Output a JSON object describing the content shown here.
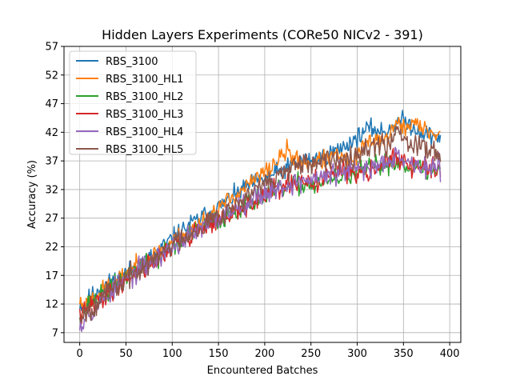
{
  "chart_data": {
    "type": "line",
    "title": "Hidden Layers Experiments (CORe50 NICv2 - 391)",
    "xlabel": "Encountered Batches",
    "ylabel": "Accuracy (%)",
    "xlim": [
      -17,
      412
    ],
    "ylim": [
      5.3,
      57
    ],
    "xticks": [
      0,
      50,
      100,
      150,
      200,
      250,
      300,
      350,
      400
    ],
    "yticks": [
      7,
      12,
      17,
      22,
      27,
      32,
      37,
      42,
      47,
      52,
      57
    ],
    "grid": true,
    "legend_position": "top-left",
    "series": [
      {
        "name": "RBS_3100",
        "color": "#1f77b4",
        "noise": 0.8,
        "seed": 11,
        "points": [
          [
            0,
            12
          ],
          [
            5,
            11.5
          ],
          [
            10,
            13
          ],
          [
            20,
            14.5
          ],
          [
            40,
            16.5
          ],
          [
            60,
            18.5
          ],
          [
            80,
            20.5
          ],
          [
            100,
            23.5
          ],
          [
            120,
            26
          ],
          [
            140,
            28
          ],
          [
            160,
            30
          ],
          [
            180,
            32.5
          ],
          [
            200,
            34
          ],
          [
            220,
            35.5
          ],
          [
            240,
            37
          ],
          [
            260,
            37.5
          ],
          [
            280,
            39
          ],
          [
            300,
            41
          ],
          [
            310,
            42.5
          ],
          [
            320,
            42.5
          ],
          [
            330,
            42
          ],
          [
            340,
            43.5
          ],
          [
            350,
            44
          ],
          [
            360,
            43
          ],
          [
            370,
            42
          ],
          [
            380,
            41.5
          ],
          [
            390,
            41
          ]
        ]
      },
      {
        "name": "RBS_3100_HL1",
        "color": "#ff7f0e",
        "noise": 0.8,
        "seed": 23,
        "points": [
          [
            0,
            12.5
          ],
          [
            5,
            11.5
          ],
          [
            10,
            12.5
          ],
          [
            20,
            14
          ],
          [
            40,
            16
          ],
          [
            60,
            18.5
          ],
          [
            80,
            20.5
          ],
          [
            100,
            23
          ],
          [
            120,
            25
          ],
          [
            140,
            27.5
          ],
          [
            160,
            30
          ],
          [
            180,
            32.5
          ],
          [
            200,
            35
          ],
          [
            210,
            36.5
          ],
          [
            220,
            38
          ],
          [
            225,
            39
          ],
          [
            230,
            37.5
          ],
          [
            240,
            37
          ],
          [
            250,
            36.5
          ],
          [
            260,
            37
          ],
          [
            280,
            38
          ],
          [
            290,
            36.5
          ],
          [
            300,
            38
          ],
          [
            310,
            40
          ],
          [
            320,
            41
          ],
          [
            330,
            40.5
          ],
          [
            340,
            43
          ],
          [
            345,
            43.5
          ],
          [
            350,
            42.5
          ],
          [
            360,
            44
          ],
          [
            370,
            42.5
          ],
          [
            380,
            42
          ],
          [
            390,
            41.5
          ]
        ]
      },
      {
        "name": "RBS_3100_HL2",
        "color": "#2ca02c",
        "noise": 0.9,
        "seed": 37,
        "points": [
          [
            0,
            10.5
          ],
          [
            5,
            11
          ],
          [
            10,
            12
          ],
          [
            20,
            13
          ],
          [
            40,
            15.5
          ],
          [
            60,
            18
          ],
          [
            80,
            19.5
          ],
          [
            100,
            22
          ],
          [
            120,
            24
          ],
          [
            140,
            26
          ],
          [
            160,
            27.5
          ],
          [
            180,
            29.5
          ],
          [
            200,
            31
          ],
          [
            220,
            32
          ],
          [
            240,
            33
          ],
          [
            260,
            33
          ],
          [
            280,
            34
          ],
          [
            300,
            35
          ],
          [
            320,
            36
          ],
          [
            340,
            37
          ],
          [
            350,
            36.5
          ],
          [
            360,
            36
          ],
          [
            370,
            35.5
          ],
          [
            380,
            35
          ],
          [
            390,
            35.5
          ]
        ]
      },
      {
        "name": "RBS_3100_HL3",
        "color": "#d62728",
        "noise": 0.9,
        "seed": 41,
        "points": [
          [
            0,
            10
          ],
          [
            5,
            10.5
          ],
          [
            10,
            11.5
          ],
          [
            20,
            12.5
          ],
          [
            40,
            15
          ],
          [
            60,
            17.5
          ],
          [
            80,
            19.5
          ],
          [
            100,
            22
          ],
          [
            120,
            24
          ],
          [
            140,
            26
          ],
          [
            160,
            27
          ],
          [
            180,
            29
          ],
          [
            200,
            31
          ],
          [
            220,
            32.5
          ],
          [
            240,
            33
          ],
          [
            260,
            34
          ],
          [
            280,
            35
          ],
          [
            300,
            35
          ],
          [
            320,
            36
          ],
          [
            340,
            37.5
          ],
          [
            350,
            36.5
          ],
          [
            360,
            36
          ],
          [
            370,
            36
          ],
          [
            380,
            35.5
          ],
          [
            390,
            35
          ]
        ]
      },
      {
        "name": "RBS_3100_HL4",
        "color": "#9467bd",
        "noise": 1.0,
        "seed": 53,
        "points": [
          [
            0,
            9.5
          ],
          [
            3,
            8
          ],
          [
            5,
            10
          ],
          [
            10,
            10.5
          ],
          [
            20,
            12
          ],
          [
            40,
            15
          ],
          [
            60,
            17.5
          ],
          [
            80,
            19.5
          ],
          [
            100,
            22
          ],
          [
            120,
            24
          ],
          [
            140,
            26
          ],
          [
            160,
            28
          ],
          [
            180,
            30
          ],
          [
            200,
            31.5
          ],
          [
            220,
            32.5
          ],
          [
            240,
            33.5
          ],
          [
            260,
            34
          ],
          [
            280,
            35
          ],
          [
            300,
            35.5
          ],
          [
            320,
            36
          ],
          [
            340,
            38
          ],
          [
            345,
            39
          ],
          [
            350,
            37
          ],
          [
            360,
            36.5
          ],
          [
            370,
            36
          ],
          [
            380,
            35.5
          ],
          [
            390,
            36
          ]
        ]
      },
      {
        "name": "RBS_3100_HL5",
        "color": "#8c564b",
        "noise": 1.0,
        "seed": 67,
        "points": [
          [
            0,
            10
          ],
          [
            5,
            10.5
          ],
          [
            10,
            11
          ],
          [
            20,
            12.5
          ],
          [
            40,
            15
          ],
          [
            60,
            17.5
          ],
          [
            80,
            19.5
          ],
          [
            100,
            22.5
          ],
          [
            120,
            24.5
          ],
          [
            140,
            26.5
          ],
          [
            160,
            28.5
          ],
          [
            180,
            30.5
          ],
          [
            200,
            33
          ],
          [
            220,
            35
          ],
          [
            240,
            36
          ],
          [
            260,
            36.5
          ],
          [
            280,
            37.5
          ],
          [
            300,
            38.5
          ],
          [
            310,
            39
          ],
          [
            320,
            40
          ],
          [
            330,
            39.5
          ],
          [
            340,
            41.5
          ],
          [
            345,
            43
          ],
          [
            350,
            41
          ],
          [
            360,
            40
          ],
          [
            370,
            40
          ],
          [
            380,
            39
          ],
          [
            390,
            38
          ]
        ]
      }
    ]
  }
}
